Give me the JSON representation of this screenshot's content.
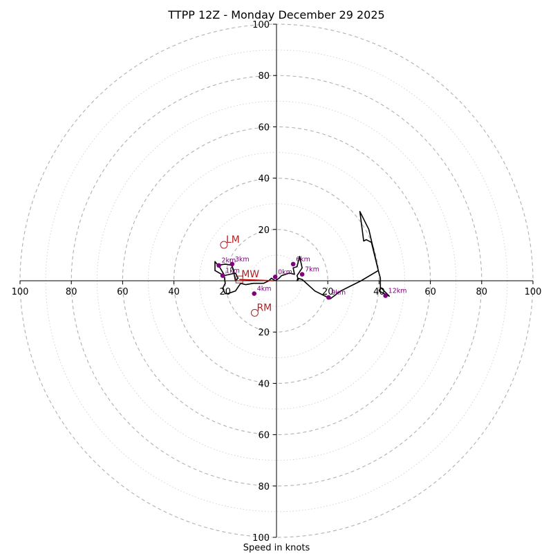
{
  "chart_data": {
    "type": "line",
    "subtype": "hodograph",
    "title": "TTPP 12Z - Monday December 29 2025",
    "xlabel": "Speed in knots",
    "ylabel": "",
    "xlim": [
      -100,
      100
    ],
    "ylim": [
      -100,
      100
    ],
    "grid": "concentric rings every 10 knots (dashed at 20, dotted between)",
    "axis_ticks": {
      "x": [
        -100,
        -80,
        -60,
        -40,
        -20,
        20,
        40,
        60,
        80,
        100
      ],
      "y": [
        -100,
        -80,
        -60,
        -40,
        -20,
        20,
        40,
        60,
        80,
        100
      ],
      "x_labels": [
        "100",
        "80",
        "60",
        "40",
        "20",
        "20",
        "40",
        "60",
        "80",
        "100"
      ],
      "y_labels": [
        "100",
        "80",
        "60",
        "40",
        "20",
        "20",
        "40",
        "60",
        "80",
        "100"
      ]
    },
    "trace": {
      "name": "hodograph",
      "color": "#000000",
      "points": [
        [
          -0.5,
          0
        ],
        [
          1,
          1
        ],
        [
          2,
          2
        ],
        [
          5,
          3
        ],
        [
          7,
          2.5
        ],
        [
          6.5,
          5
        ],
        [
          8,
          5.5
        ],
        [
          9,
          9.5
        ],
        [
          10,
          5
        ],
        [
          8,
          2
        ],
        [
          8.5,
          0.5
        ],
        [
          8,
          0
        ],
        [
          8.3,
          1
        ],
        [
          10,
          0.5
        ],
        [
          15,
          -4
        ],
        [
          21,
          -7
        ],
        [
          25,
          -4
        ],
        [
          33,
          0
        ],
        [
          39.7,
          4
        ],
        [
          37,
          15
        ],
        [
          35,
          16
        ],
        [
          34,
          15.5
        ],
        [
          32.5,
          27
        ],
        [
          36,
          20
        ],
        [
          39.7,
          4
        ],
        [
          40.5,
          1
        ],
        [
          40.5,
          -3
        ],
        [
          40,
          -4
        ],
        [
          44,
          -6
        ],
        [
          42,
          -4
        ],
        [
          40.5,
          -2.5
        ]
      ]
    },
    "trace2": {
      "name": "lower-levels",
      "color": "#000000",
      "points": [
        [
          -0.5,
          0
        ],
        [
          -2,
          1
        ],
        [
          -3,
          0
        ],
        [
          -5,
          -1
        ],
        [
          -9,
          -1
        ],
        [
          -12,
          -1.5
        ],
        [
          -14,
          -1
        ],
        [
          -16,
          -4
        ],
        [
          -19,
          -5
        ],
        [
          -20,
          -5
        ],
        [
          -21,
          -3
        ],
        [
          -20,
          -1
        ],
        [
          -20.5,
          2.5
        ],
        [
          -22,
          5
        ],
        [
          -24,
          7.5
        ],
        [
          -24,
          4
        ],
        [
          -20.5,
          2
        ],
        [
          -16,
          3
        ],
        [
          -15,
          1
        ],
        [
          -16,
          0
        ],
        [
          -17,
          5
        ],
        [
          -17.5,
          5
        ],
        [
          -17,
          6
        ],
        [
          -20,
          6.5
        ],
        [
          -23,
          6
        ]
      ]
    },
    "storm_motion_line": {
      "color": "#cc0000",
      "from": [
        -14.5,
        0.5
      ],
      "to": [
        -1,
        0
      ]
    },
    "height_markers": [
      {
        "label": "0km",
        "x": -0.5,
        "y": 1.5
      },
      {
        "label": "1km",
        "x": -21,
        "y": 2
      },
      {
        "label": "2km",
        "x": -22.5,
        "y": 6
      },
      {
        "label": "3km",
        "x": -17.3,
        "y": 6.5
      },
      {
        "label": "4km",
        "x": -8.7,
        "y": -5
      },
      {
        "label": "6km",
        "x": 6.5,
        "y": 6.5
      },
      {
        "label": "7km",
        "x": 10,
        "y": 2.5
      },
      {
        "label": "9km",
        "x": 20.3,
        "y": -6.5
      },
      {
        "label": "12km",
        "x": 42.5,
        "y": -5.8
      }
    ],
    "storm_markers": [
      {
        "label": "LM",
        "x": -20.5,
        "y": 14,
        "marker": "circle"
      },
      {
        "label": "MW",
        "x": -14.5,
        "y": 0.5,
        "marker": "square"
      },
      {
        "label": "RM",
        "x": -8.5,
        "y": -12.5,
        "marker": "circle"
      }
    ],
    "colors": {
      "trace": "#000000",
      "markers": "#800080",
      "storm": "#b22222",
      "storm_line": "#cc0000",
      "grid": "#b0b0b0"
    }
  }
}
